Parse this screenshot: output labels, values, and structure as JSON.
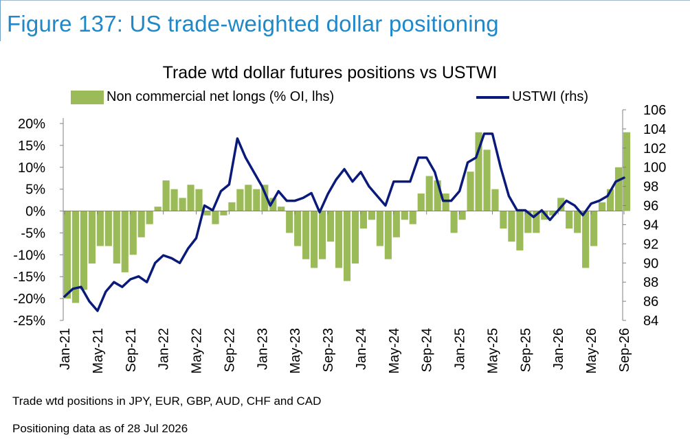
{
  "figure": {
    "title": "Figure 137: US trade-weighted dollar positioning",
    "notes": [
      "Trade wtd positions in JPY, EUR, GBP, AUD, CHF and CAD",
      "Positioning data as of 28 Jul 2026"
    ]
  },
  "colors": {
    "title": "#1e88c9",
    "bars": "#9bbb59",
    "line": "#0a1a7a"
  },
  "chart_data": {
    "type": "bar+line",
    "title": "Trade wtd dollar futures positions  vs USTWI",
    "legend": [
      "Non commercial net longs (% OI, lhs)",
      "USTWI (rhs)"
    ],
    "legend_placement": "top",
    "grid": false,
    "x_tick_labels": [
      "Jan-21",
      "May-21",
      "Sep-21",
      "Jan-22",
      "May-22",
      "Sep-22",
      "Jan-23",
      "May-23",
      "Sep-23",
      "Jan-24",
      "May-24",
      "Sep-24",
      "Jan-25",
      "May-25",
      "Sep-25",
      "Jan-26",
      "May-26",
      "Sep-26"
    ],
    "y_left": {
      "ylim": [
        -25,
        20
      ],
      "ticks": [
        "20%",
        "15%",
        "10%",
        "5%",
        "0%",
        "-5%",
        "-10%",
        "-15%",
        "-20%",
        "-25%"
      ]
    },
    "y_right": {
      "ylim": [
        84,
        106
      ],
      "ticks": [
        "106",
        "104",
        "102",
        "100",
        "98",
        "96",
        "94",
        "92",
        "90",
        "88",
        "86",
        "84"
      ]
    },
    "series": [
      {
        "name": "Non commercial net longs (% OI, lhs)",
        "type": "bar",
        "axis": "left",
        "x_months": [
          0,
          1,
          2,
          3,
          4,
          5,
          6,
          7,
          8,
          9,
          10,
          11,
          12,
          13,
          14,
          15,
          16,
          17,
          18,
          19,
          20,
          21,
          22,
          23,
          24,
          25,
          26,
          27,
          28,
          29,
          30,
          31,
          32,
          33,
          34,
          35,
          36,
          37,
          38,
          39,
          40,
          41,
          42,
          43,
          44,
          45,
          46,
          47,
          48,
          49,
          50,
          51,
          52,
          53,
          54,
          55,
          56,
          57,
          58,
          59,
          60,
          61,
          62,
          63,
          64,
          65,
          66,
          67,
          68
        ],
        "values": [
          -20,
          -21,
          -18,
          -12,
          -8,
          -8,
          -12,
          -14,
          -10,
          -6,
          -3,
          1,
          7,
          5,
          3,
          6,
          5,
          -1,
          -3,
          -1,
          2,
          5,
          6,
          5,
          6,
          3,
          1,
          -5,
          -8,
          -11,
          -13,
          -11,
          -7,
          -13,
          -16,
          -12,
          -4,
          -2,
          -8,
          -11,
          -6,
          -2,
          -3,
          4,
          8,
          7,
          4,
          -5,
          -2,
          9,
          18,
          14,
          5,
          -4,
          -7,
          -9,
          -5,
          -5,
          -2,
          -1,
          3,
          -4,
          -5,
          -13,
          -8,
          2,
          5,
          10,
          18
        ]
      },
      {
        "name": "USTWI (rhs)",
        "type": "line",
        "axis": "right",
        "x_months": [
          0,
          1,
          2,
          3,
          4,
          5,
          6,
          7,
          8,
          9,
          10,
          11,
          12,
          13,
          14,
          15,
          16,
          17,
          18,
          19,
          20,
          21,
          22,
          23,
          24,
          25,
          26,
          27,
          28,
          29,
          30,
          31,
          32,
          33,
          34,
          35,
          36,
          37,
          38,
          39,
          40,
          41,
          42,
          43,
          44,
          45,
          46,
          47,
          48,
          49,
          50,
          51,
          52,
          53,
          54,
          55,
          56,
          57,
          58,
          59,
          60,
          61,
          62,
          63,
          64,
          65,
          66,
          67,
          68
        ],
        "values": [
          86.5,
          87.3,
          87.5,
          86.0,
          85.0,
          87.0,
          88.0,
          87.5,
          88.3,
          88.6,
          88.0,
          90.0,
          90.8,
          90.5,
          90.0,
          91.5,
          92.6,
          96.0,
          95.5,
          97.5,
          98.2,
          103.0,
          101.0,
          99.5,
          98.0,
          96.0,
          97.5,
          96.5,
          96.5,
          96.8,
          97.3,
          95.3,
          97.2,
          98.7,
          99.8,
          98.5,
          99.5,
          98.0,
          97.0,
          96.0,
          98.5,
          98.5,
          98.5,
          101.0,
          101.0,
          99.5,
          96.5,
          96.5,
          97.5,
          100.5,
          101.0,
          103.5,
          103.5,
          100.0,
          97.0,
          95.5,
          95.5,
          94.8,
          95.5,
          94.5,
          95.5,
          96.5,
          96.0,
          95.0,
          96.2,
          96.5,
          97.0,
          98.5,
          98.9
        ]
      }
    ]
  }
}
